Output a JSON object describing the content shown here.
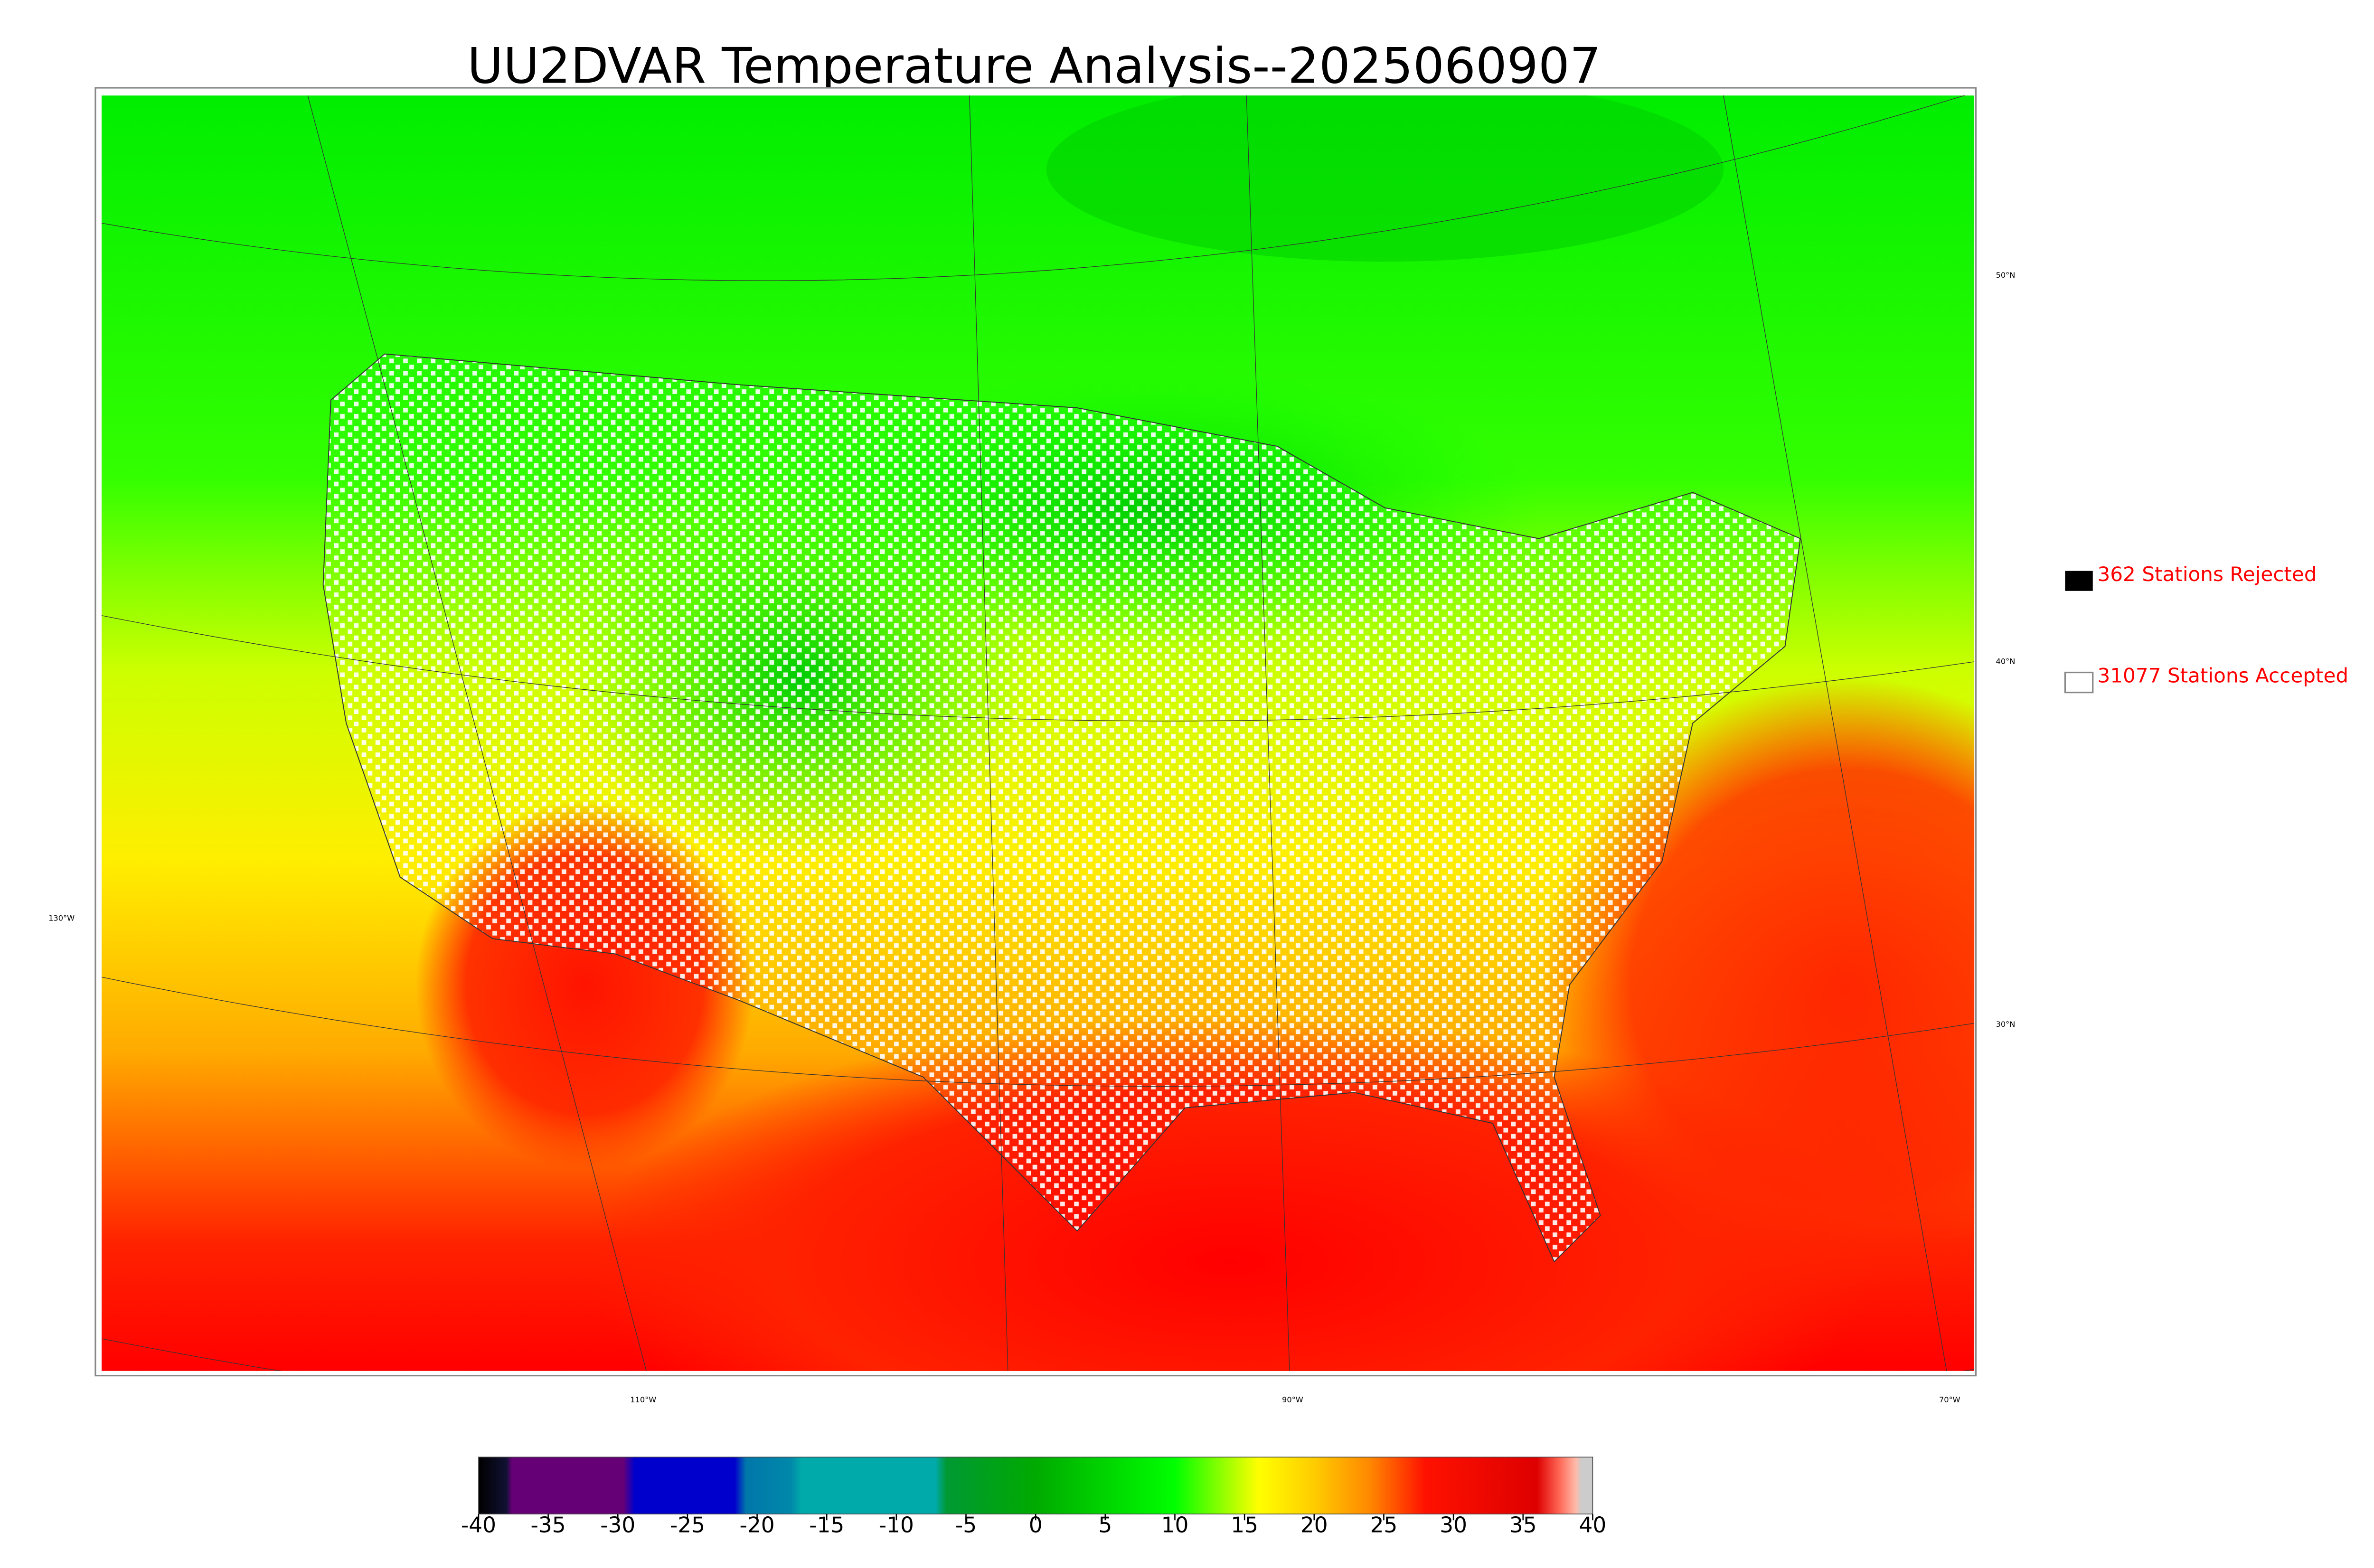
{
  "title": "UU2DVAR Temperature Analysis--2025060907",
  "legend": [
    "362 Stations Rejected",
    "31077 Stations Accepted"
  ],
  "map": {
    "lat_labels": [
      "50°N",
      "40°N",
      "30°N"
    ],
    "lon_labels": [
      "130°W",
      "110°W",
      "90°W",
      "70°W"
    ]
  },
  "colorbar": {
    "lim": [
      -40,
      40
    ],
    "ticks": [
      -40,
      -35,
      -30,
      -25,
      -20,
      -15,
      -10,
      -5,
      0,
      5,
      10,
      15,
      20,
      25,
      30,
      35,
      40
    ]
  }
}
